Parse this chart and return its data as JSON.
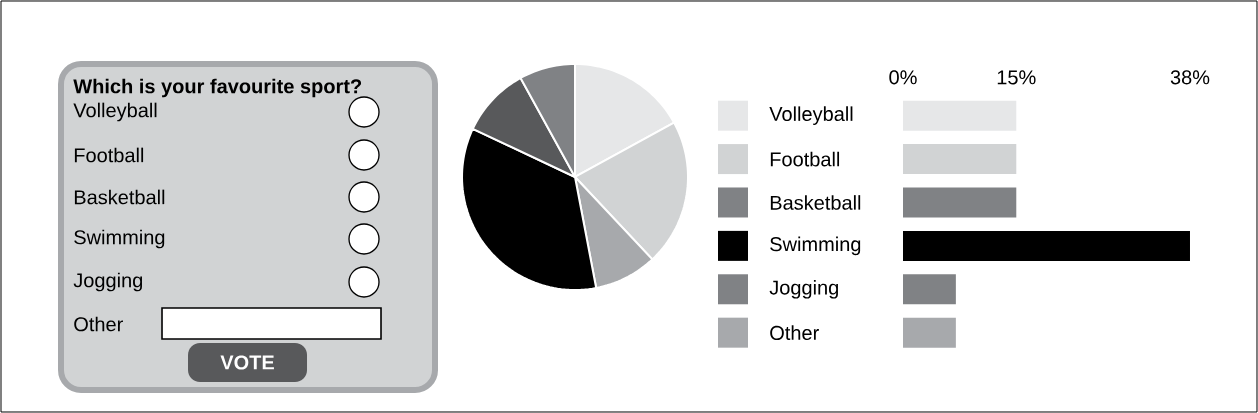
{
  "chart_data": [
    {
      "type": "other",
      "title": "Which is your favourite sport?",
      "categories": [
        "Volleyball",
        "Football",
        "Basketball",
        "Swimming",
        "Jogging",
        "Other"
      ],
      "annotations": [
        "VOTE"
      ]
    },
    {
      "type": "pie",
      "categories": [
        null,
        null,
        null,
        null,
        null,
        null
      ],
      "values": [
        17,
        21,
        9,
        35,
        10,
        8
      ],
      "colors": [
        "#e6e7e8",
        "#d1d3d4",
        "#a7a9ac",
        "#000000",
        "#58595b",
        "#808285"
      ]
    },
    {
      "type": "bar",
      "orientation": "horizontal",
      "categories": [
        "Volleyball",
        "Football",
        "Basketball",
        "Swimming",
        "Jogging",
        "Other"
      ],
      "values": [
        15,
        15,
        15,
        38,
        7,
        7
      ],
      "colors": [
        "#e6e7e8",
        "#d1d3d4",
        "#808285",
        "#000000",
        "#808285",
        "#a7a9ac"
      ],
      "xlim": [
        0,
        38
      ],
      "xticks": [
        {
          "value": 0,
          "label": "0%"
        },
        {
          "value": 15,
          "label": "15%"
        },
        {
          "value": 38,
          "label": "38%"
        }
      ]
    }
  ]
}
